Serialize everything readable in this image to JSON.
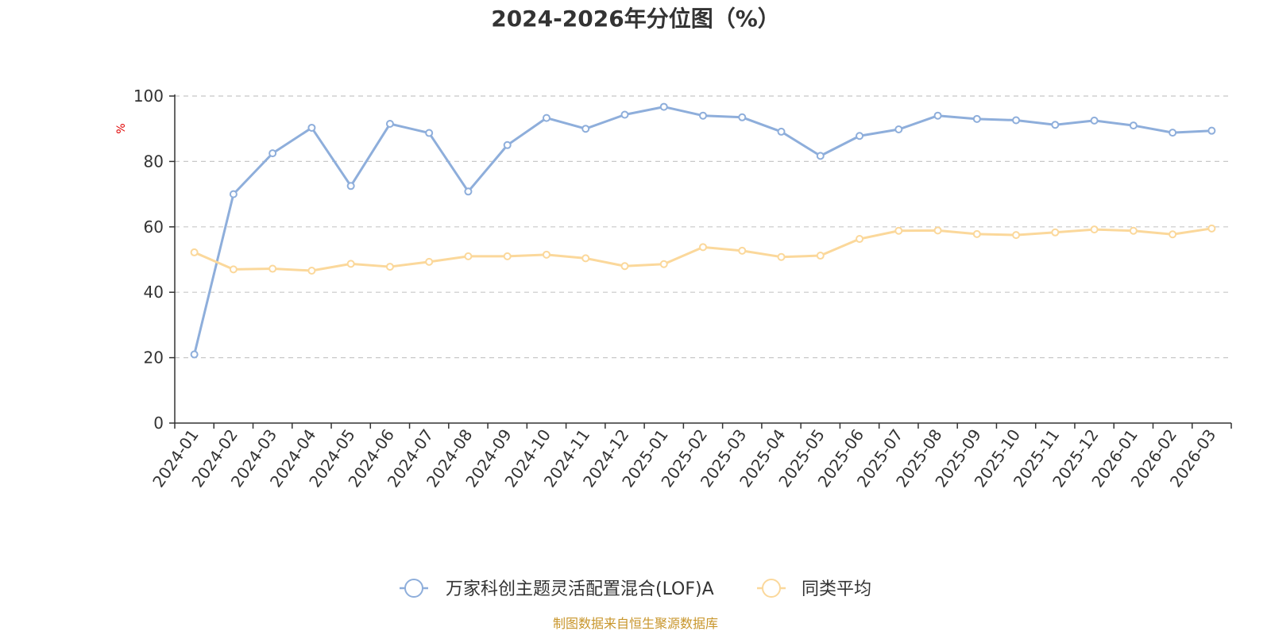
{
  "chart_data": {
    "type": "line",
    "title": "2024-2026年分位图（%）",
    "ylabel": "%",
    "xlabel": "",
    "ylim": [
      0,
      100
    ],
    "yticks": [
      0,
      20,
      40,
      60,
      80,
      100
    ],
    "grid": true,
    "legend_position": "bottom",
    "categories": [
      "2024-01",
      "2024-02",
      "2024-03",
      "2024-04",
      "2024-05",
      "2024-06",
      "2024-07",
      "2024-08",
      "2024-09",
      "2024-10",
      "2024-11",
      "2024-12",
      "2025-01",
      "2025-02",
      "2025-03",
      "2025-04",
      "2025-05",
      "2025-06",
      "2025-07",
      "2025-08",
      "2025-09",
      "2025-10",
      "2025-11",
      "2025-12",
      "2026-01",
      "2026-02",
      "2026-03"
    ],
    "series": [
      {
        "name": "万家科创主题灵活配置混合(LOF)A",
        "color": "#8eaedb",
        "values": [
          21,
          70,
          82.5,
          90.3,
          72.5,
          91.5,
          88.7,
          70.8,
          85,
          93.3,
          90,
          94.3,
          96.7,
          94,
          93.5,
          89.1,
          81.7,
          87.8,
          89.8,
          94,
          93,
          92.6,
          91.2,
          92.5,
          91,
          88.8,
          89.4
        ]
      },
      {
        "name": "同类平均",
        "color": "#fbd89b",
        "values": [
          52.2,
          47,
          47.2,
          46.6,
          48.7,
          47.8,
          49.3,
          51,
          51,
          51.5,
          50.4,
          48,
          48.6,
          53.8,
          52.7,
          50.8,
          51.2,
          56.3,
          58.8,
          58.9,
          57.8,
          57.5,
          58.3,
          59.2,
          58.8,
          57.7,
          59.5
        ]
      }
    ]
  },
  "footer": {
    "source": "制图数据来自恒生聚源数据库",
    "source_color": "#c8962c"
  },
  "colors": {
    "axis": "#333333",
    "grid": "#c8c8c8",
    "ylabel": "#e00000"
  }
}
